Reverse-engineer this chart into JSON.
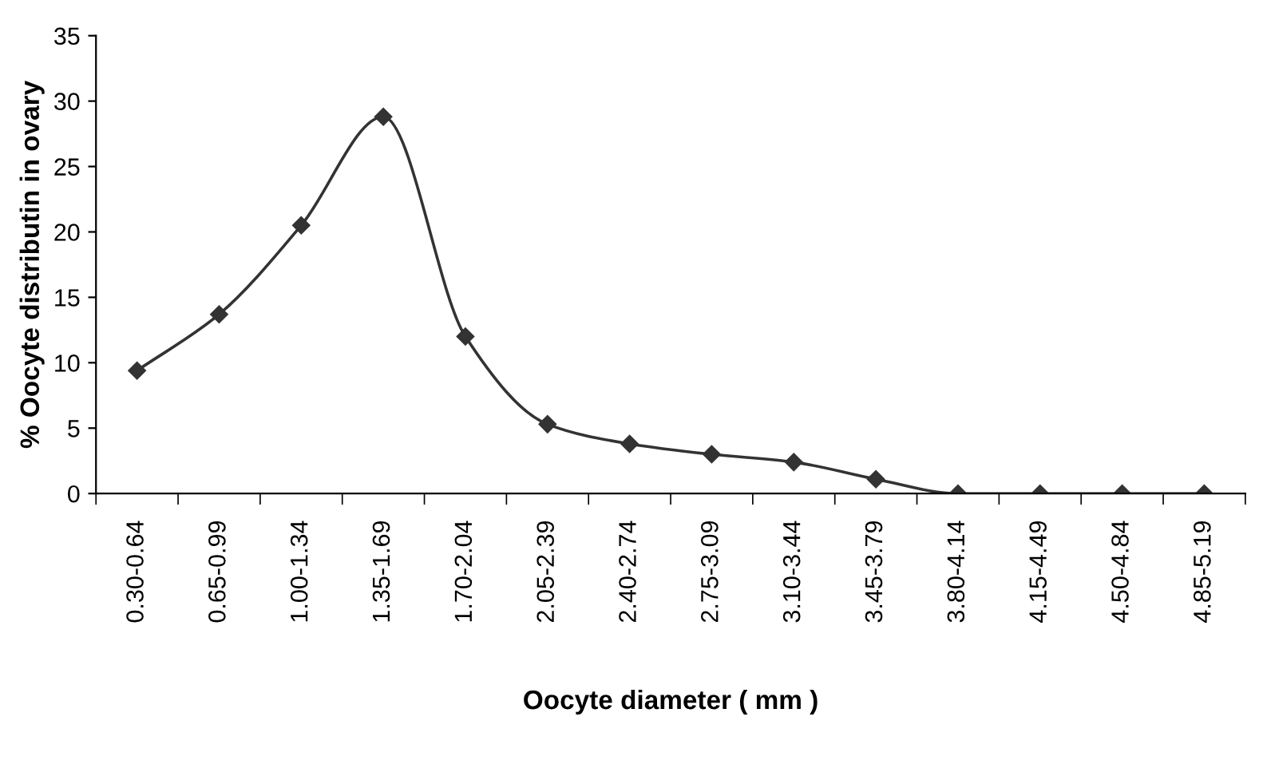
{
  "chart_data": {
    "type": "line",
    "xlabel": "Oocyte diameter ( mm )",
    "ylabel": "% Oocyte distributin in ovary",
    "categories": [
      "0.30-0.64",
      "0.65-0.99",
      "1.00-1.34",
      "1.35-1.69",
      "1.70-2.04",
      "2.05-2.39",
      "2.40-2.74",
      "2.75-3.09",
      "3.10-3.44",
      "3.45-3.79",
      "3.80-4.14",
      "4.15-4.49",
      "4.50-4.84",
      "4.85-5.19"
    ],
    "series": [
      {
        "color": "#333333",
        "values": [
          9.4,
          13.7,
          20.5,
          28.8,
          12.0,
          5.3,
          3.8,
          3.0,
          2.4,
          1.1,
          0,
          0,
          0,
          0
        ]
      }
    ],
    "ylim": [
      0,
      35
    ],
    "yticks": [
      0,
      5,
      10,
      15,
      20,
      25,
      30,
      35
    ],
    "grid": false,
    "legend": false,
    "marker": "diamond",
    "line_style": "solid"
  }
}
